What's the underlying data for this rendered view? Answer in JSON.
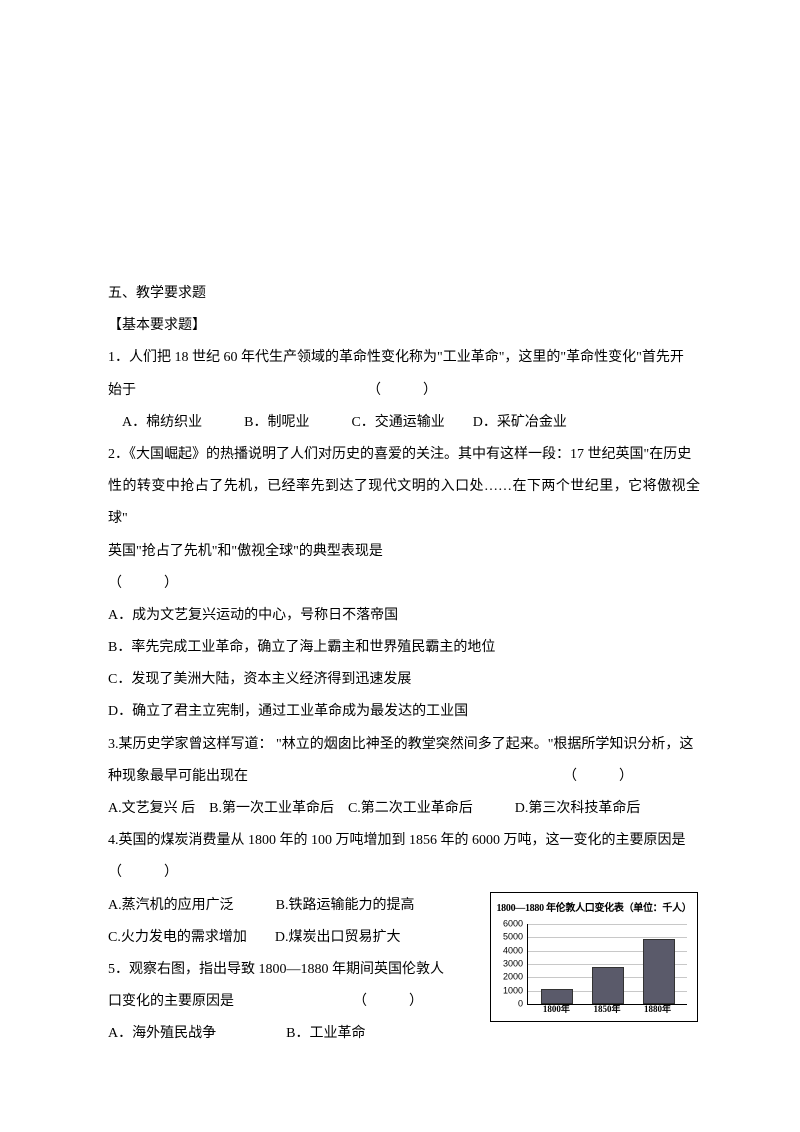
{
  "section_title": "五、教学要求题",
  "subsection_title": "【基本要求题】",
  "q1": {
    "line1": "1．人们把 18 世纪 60 年代生产领域的革命性变化称为\"工业革命\"，这里的\"革命性变化\"首先开",
    "line2": "始于　　　　　　　　　　　　　　　　　（　　　）",
    "opts": "　A．棉纺织业　　　B．制呢业　　　C．交通运输业　　D．采矿冶金业"
  },
  "q2": {
    "line1": "2．《大国崛起》的热播说明了人们对历史的喜爱的关注。其中有这样一段：17 世纪英国\"在历史",
    "line2": "性的转变中抢占了先机，已经率先到达了现代文明的入口处……在下两个世纪里，它将傲视全球\"",
    "line3": "英国\"抢占了先机\"和\"傲视全球\"的典型表现是",
    "line4": "（　　　）",
    "a": "A．成为文艺复兴运动的中心，号称日不落帝国",
    "b": "B．率先完成工业革命，确立了海上霸主和世界殖民霸主的地位",
    "c": "C．发现了美洲大陆，资本主义经济得到迅速发展",
    "d": "D．确立了君主立宪制，通过工业革命成为最发达的工业国"
  },
  "q3": {
    "line1": "3.某历史学家曾这样写道： \"林立的烟囱比神圣的教堂突然间多了起来。\"根据所学知识分析，这",
    "line2": "种现象最早可能出现在　　　　　　　　　　　　　　　　　　　　　　　（　　　）",
    "opts": "A.文艺复兴  后　B.第一次工业革命后　C.第二次工业革命后　　　D.第三次科技革命后"
  },
  "q4": {
    "line1": "4.英国的煤炭消费量从 1800 年的 100 万吨增加到 1856 年的 6000 万吨，这一变化的主要原因是",
    "line2": "（　　　）",
    "a": "A.蒸汽机的应用广泛　　　B.铁路运输能力的提高",
    "b": "C.火力发电的需求增加　　D.煤炭出口贸易扩大"
  },
  "q5": {
    "line1": "5．观察右图，指出导致 1800—1880 年期间英国伦敦人",
    "line2": "口变化的主要原因是　　　　　　　　　（　　　）",
    "a": "A．海外殖民战争　　　　　B．工业革命"
  },
  "chart": {
    "title": "1800—1880 年伦敦人口变化表（单位：千人）",
    "y_ticks": [
      "0",
      "1000",
      "2000",
      "3000",
      "4000",
      "5000",
      "6000"
    ],
    "x_labels": [
      "1800年",
      "1850年",
      "1880年"
    ],
    "values": [
      950,
      2650,
      4750
    ],
    "y_max": 6000,
    "bar_color": "#5a5a6a",
    "grid_color": "#c8c8c8"
  }
}
